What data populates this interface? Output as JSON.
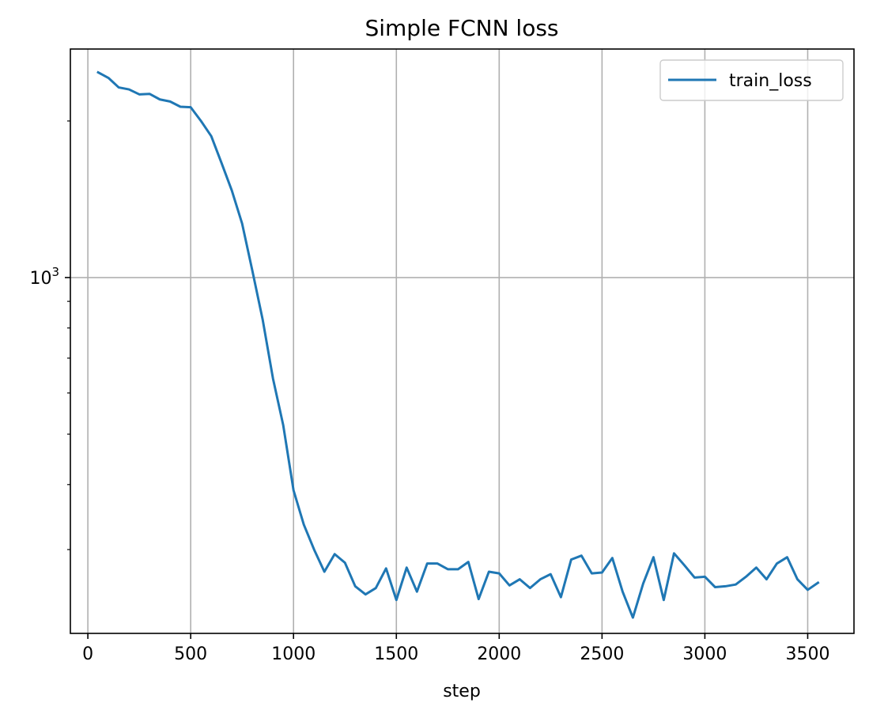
{
  "chart_data": {
    "type": "line",
    "title": "Simple FCNN loss",
    "xlabel": "step",
    "ylabel": "",
    "xlim": [
      -85,
      3725
    ],
    "ylim": [
      207,
      2750
    ],
    "yscale": "log",
    "x_ticks": [
      0,
      500,
      1000,
      1500,
      2000,
      2500,
      3000,
      3500
    ],
    "x_tick_labels": [
      "0",
      "500",
      "1000",
      "1500",
      "2000",
      "2500",
      "3000",
      "3500"
    ],
    "y_major_ticks": [
      1000
    ],
    "y_major_tick_base": "10",
    "y_major_tick_exp": "3",
    "y_minor_ticks": [
      300,
      400,
      500,
      600,
      700,
      800,
      900,
      2000
    ],
    "grid": true,
    "legend": {
      "placement": "top-right",
      "entries": [
        "train_loss"
      ]
    },
    "series": [
      {
        "name": "train_loss",
        "color": "#1f77b4",
        "x": [
          50,
          100,
          150,
          200,
          250,
          300,
          350,
          400,
          450,
          500,
          550,
          600,
          650,
          700,
          750,
          800,
          850,
          900,
          950,
          1000,
          1050,
          1100,
          1150,
          1200,
          1250,
          1300,
          1350,
          1400,
          1450,
          1500,
          1550,
          1600,
          1650,
          1700,
          1750,
          1800,
          1850,
          1900,
          1950,
          2000,
          2050,
          2100,
          2150,
          2200,
          2250,
          2300,
          2350,
          2400,
          2450,
          2500,
          2550,
          2600,
          2650,
          2700,
          2750,
          2800,
          2850,
          2900,
          2950,
          3000,
          3050,
          3100,
          3150,
          3200,
          3250,
          3300,
          3350,
          3400,
          3450,
          3500,
          3550
        ],
        "y": [
          2480,
          2420,
          2320,
          2300,
          2250,
          2255,
          2200,
          2180,
          2130,
          2125,
          2000,
          1870,
          1660,
          1470,
          1270,
          1030,
          830,
          640,
          520,
          390,
          335,
          300,
          272,
          294,
          283,
          255,
          246,
          253,
          276,
          240,
          277,
          249,
          282,
          282,
          275,
          275,
          284,
          241,
          272,
          270,
          256,
          263,
          253,
          263,
          269,
          243,
          287,
          292,
          270,
          271,
          289,
          249,
          222,
          258,
          290,
          240,
          295,
          280,
          265,
          266,
          254,
          255,
          257,
          266,
          277,
          263,
          282,
          290,
          263,
          251,
          259
        ]
      }
    ]
  }
}
